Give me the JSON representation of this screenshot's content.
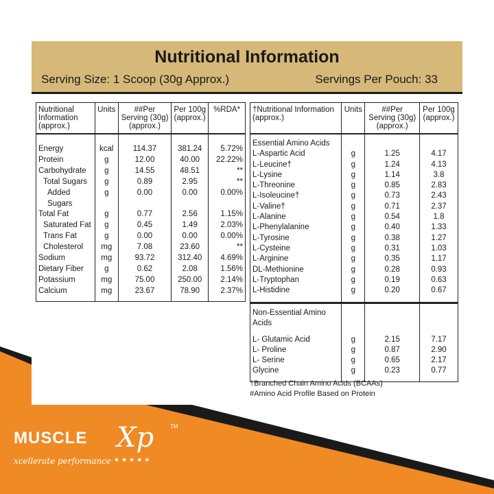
{
  "header": {
    "title": "Nutritional Information",
    "serving_size": "Serving Size: 1 Scoop (30g Approx.)",
    "servings_per": "Servings Per Pouch: 33"
  },
  "left_table": {
    "headers": [
      "Nutritional Information (approx.)",
      "Units",
      "##Per Serving (30g) (approx.)",
      "Per 100g (approx.)",
      "%RDA*"
    ],
    "rows": [
      {
        "name": "Energy",
        "unit": "kcal",
        "serving": "114.37",
        "per100": "381.24",
        "rda": "5.72%"
      },
      {
        "name": "Protein",
        "unit": "g",
        "serving": "12.00",
        "per100": "40.00",
        "rda": "22.22%"
      },
      {
        "name": "Carbohydrate",
        "unit": "g",
        "serving": "14.55",
        "per100": "48.51",
        "rda": "**"
      },
      {
        "name": "Total Sugars",
        "unit": "g",
        "serving": "0.89",
        "per100": "2.95",
        "rda": "**"
      },
      {
        "name": "Added Sugars",
        "unit": "g",
        "serving": "0.00",
        "per100": "0.00",
        "rda": "0.00%"
      },
      {
        "name": "Total Fat",
        "unit": "g",
        "serving": "0.77",
        "per100": "2.56",
        "rda": "1.15%"
      },
      {
        "name": "Saturated Fat",
        "unit": "g",
        "serving": "0.45",
        "per100": "1.49",
        "rda": "2.03%"
      },
      {
        "name": "Trans Fat",
        "unit": "g",
        "serving": "0.00",
        "per100": "0.00",
        "rda": "0.00%"
      },
      {
        "name": "Cholesterol",
        "unit": "mg",
        "serving": "7.08",
        "per100": "23.60",
        "rda": "**"
      },
      {
        "name": "Sodium",
        "unit": "mg",
        "serving": "93.72",
        "per100": "312.40",
        "rda": "4.69%"
      },
      {
        "name": "Dietary Fiber",
        "unit": "g",
        "serving": "0.62",
        "per100": "2.08",
        "rda": "1.56%"
      },
      {
        "name": "Potassium",
        "unit": "mg",
        "serving": "75.00",
        "per100": "250.00",
        "rda": "2.14%"
      },
      {
        "name": "Calcium",
        "unit": "mg",
        "serving": "23.67",
        "per100": "78.90",
        "rda": "2.37%"
      }
    ]
  },
  "right_table": {
    "headers": [
      "†Nutritional Information (approx.)",
      "Units",
      "##Per Serving (30g) (approx.)",
      "Per 100g (approx.)"
    ],
    "essential_title": "Essential Amino Acids",
    "essential": [
      {
        "name": "L-Aspartic Acid",
        "unit": "g",
        "serving": "1.25",
        "per100": "4.17"
      },
      {
        "name": "L-Leucine†",
        "unit": "g",
        "serving": "1.24",
        "per100": "4.13"
      },
      {
        "name": "L-Lysine",
        "unit": "g",
        "serving": "1.14",
        "per100": "3.8"
      },
      {
        "name": "L-Threonine",
        "unit": "g",
        "serving": "0.85",
        "per100": "2.83"
      },
      {
        "name": "L-Isoleucine†",
        "unit": "g",
        "serving": "0.73",
        "per100": "2.43"
      },
      {
        "name": "L-Valine†",
        "unit": "g",
        "serving": "0.71",
        "per100": "2.37"
      },
      {
        "name": "L-Alanine",
        "unit": "g",
        "serving": "0.54",
        "per100": "1.8"
      },
      {
        "name": "L-Phenylalanine",
        "unit": "g",
        "serving": "0.40",
        "per100": "1.33"
      },
      {
        "name": "L-Tyrosine",
        "unit": "g",
        "serving": "0.38",
        "per100": "1.27"
      },
      {
        "name": "L-Cysteine",
        "unit": "g",
        "serving": "0.31",
        "per100": "1.03"
      },
      {
        "name": "L-Arginine",
        "unit": "g",
        "serving": "0.35",
        "per100": "1.17"
      },
      {
        "name": "DL-Methionine",
        "unit": "g",
        "serving": "0.28",
        "per100": "0.93"
      },
      {
        "name": "L-Tryptophan",
        "unit": "g",
        "serving": "0.19",
        "per100": "0.63"
      },
      {
        "name": "L-Histidine",
        "unit": "g",
        "serving": "0.20",
        "per100": "0.67"
      }
    ],
    "nonessential_title": "Non-Essential Amino Acids",
    "nonessential": [
      {
        "name": "L- Glutamic Acid",
        "unit": "g",
        "serving": "2.15",
        "per100": "7.17"
      },
      {
        "name": "L- Proline",
        "unit": "g",
        "serving": "0.87",
        "per100": "2.90"
      },
      {
        "name": "L- Serine",
        "unit": "g",
        "serving": "0.65",
        "per100": "2.17"
      },
      {
        "name": "Glycine",
        "unit": "g",
        "serving": "0.23",
        "per100": "0.77"
      }
    ]
  },
  "footnotes": {
    "bcaa": "†Branched Chain Amino Acids (BCAAs)",
    "profile": "#Amino Acid Profile Based on Protein"
  },
  "brand": {
    "word": "MUSCLE",
    "xp": "Xp",
    "tm": "TM",
    "tagline": "xcellerate performance",
    "stars": "★★★★★"
  },
  "colors": {
    "header_bg": "#d6b879",
    "orange": "#f08a24",
    "dark": "#1a1a1a"
  }
}
